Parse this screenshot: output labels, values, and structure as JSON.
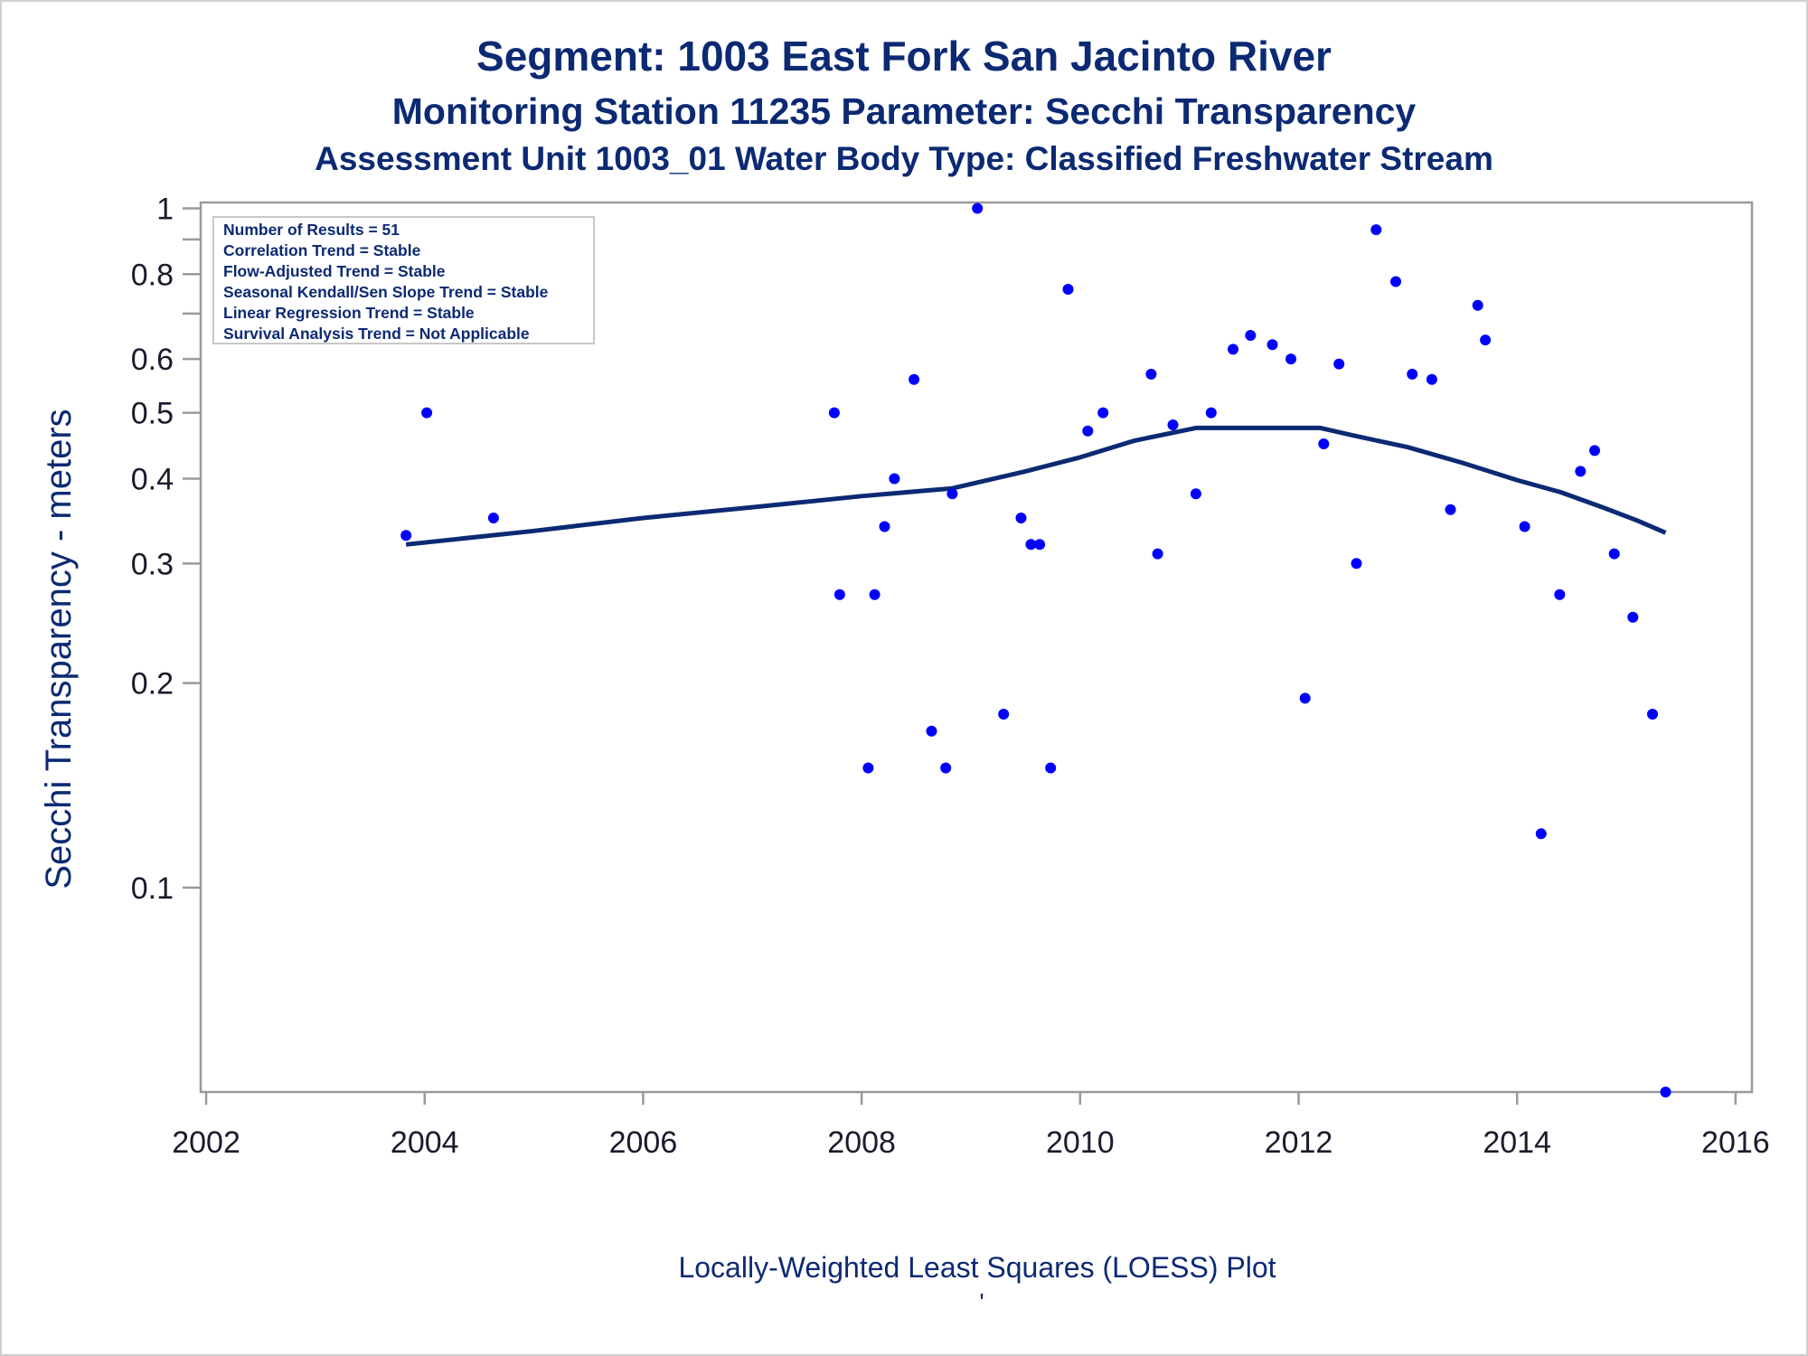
{
  "titles": {
    "line1": "Segment: 1003  East Fork San Jacinto River",
    "line2": "Monitoring Station 11235 Parameter: Secchi Transparency",
    "line3": "Assessment Unit 1003_01   Water Body Type: Classified Freshwater Stream"
  },
  "footer": {
    "caption": "Locally-Weighted Least Squares (LOESS) Plot",
    "mark": "'"
  },
  "info_box": [
    "Number of Results = 51",
    "Correlation Trend = Stable",
    "Flow-Adjusted Trend = Stable",
    "Seasonal Kendall/Sen Slope Trend = Stable",
    "Linear Regression Trend = Stable",
    "Survival Analysis Trend = Not Applicable"
  ],
  "colors": {
    "text": "#0c2a73",
    "points": "#0000ff",
    "loess": "#0c2a73",
    "axis": "#9a9a9a"
  },
  "chart_data": {
    "type": "scatter",
    "ylabel": "Secchi Transparency - meters",
    "xlabel": "",
    "yscale": "log",
    "xlim": [
      2001.95,
      2016.15
    ],
    "ylim": [
      0.05,
      1.02
    ],
    "xticks": [
      2002,
      2004,
      2006,
      2008,
      2010,
      2012,
      2014,
      2016
    ],
    "yticks": [
      {
        "value": 0.1,
        "label": "0.1"
      },
      {
        "value": 0.2,
        "label": "0.2"
      },
      {
        "value": 0.3,
        "label": "0.3"
      },
      {
        "value": 0.4,
        "label": "0.4"
      },
      {
        "value": 0.5,
        "label": "0.5"
      },
      {
        "value": 0.6,
        "label": "0.6"
      },
      {
        "value": 0.7,
        "label": ""
      },
      {
        "value": 0.8,
        "label": "0.8"
      },
      {
        "value": 0.9,
        "label": ""
      },
      {
        "value": 1.0,
        "label": "1"
      }
    ],
    "grid": false,
    "points": [
      [
        2003.83,
        0.33
      ],
      [
        2004.02,
        0.5
      ],
      [
        2004.63,
        0.35
      ],
      [
        2007.75,
        0.5
      ],
      [
        2007.8,
        0.27
      ],
      [
        2008.06,
        0.15
      ],
      [
        2008.12,
        0.27
      ],
      [
        2008.21,
        0.34
      ],
      [
        2008.3,
        0.4
      ],
      [
        2008.48,
        0.56
      ],
      [
        2008.64,
        0.17
      ],
      [
        2008.77,
        0.15
      ],
      [
        2008.83,
        0.38
      ],
      [
        2009.06,
        1.0
      ],
      [
        2009.3,
        0.18
      ],
      [
        2009.46,
        0.35
      ],
      [
        2009.55,
        0.32
      ],
      [
        2009.63,
        0.32
      ],
      [
        2009.73,
        0.15
      ],
      [
        2009.89,
        0.76
      ],
      [
        2010.07,
        0.47
      ],
      [
        2010.21,
        0.5
      ],
      [
        2010.65,
        0.57
      ],
      [
        2010.71,
        0.31
      ],
      [
        2010.85,
        0.48
      ],
      [
        2011.06,
        0.38
      ],
      [
        2011.2,
        0.5
      ],
      [
        2011.4,
        0.62
      ],
      [
        2011.56,
        0.65
      ],
      [
        2011.76,
        0.63
      ],
      [
        2011.93,
        0.6
      ],
      [
        2012.06,
        0.19
      ],
      [
        2012.23,
        0.45
      ],
      [
        2012.37,
        0.59
      ],
      [
        2012.53,
        0.3
      ],
      [
        2012.71,
        0.93
      ],
      [
        2012.89,
        0.78
      ],
      [
        2013.04,
        0.57
      ],
      [
        2013.22,
        0.56
      ],
      [
        2013.39,
        0.36
      ],
      [
        2013.64,
        0.72
      ],
      [
        2013.71,
        0.64
      ],
      [
        2014.07,
        0.34
      ],
      [
        2014.22,
        0.12
      ],
      [
        2014.39,
        0.27
      ],
      [
        2014.58,
        0.41
      ],
      [
        2014.71,
        0.44
      ],
      [
        2014.89,
        0.31
      ],
      [
        2015.06,
        0.25
      ],
      [
        2015.24,
        0.18
      ],
      [
        2015.36,
        0.05
      ]
    ],
    "series": [
      {
        "type": "line",
        "x": [
          2003.83,
          2005.0,
          2006.0,
          2007.0,
          2008.0,
          2008.83,
          2009.5,
          2010.0,
          2010.5,
          2011.06,
          2012.2,
          2012.5,
          2013.0,
          2013.5,
          2014.0,
          2014.4,
          2014.8,
          2015.1,
          2015.36
        ],
        "y": [
          0.32,
          0.335,
          0.35,
          0.363,
          0.377,
          0.387,
          0.41,
          0.43,
          0.455,
          0.475,
          0.475,
          0.463,
          0.445,
          0.422,
          0.398,
          0.382,
          0.362,
          0.347,
          0.333
        ]
      }
    ]
  }
}
